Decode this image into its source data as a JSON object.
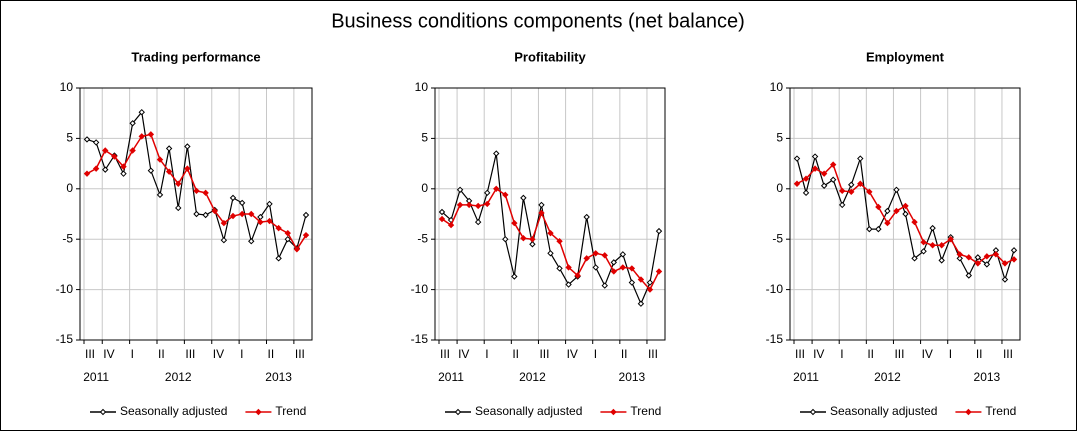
{
  "title": "Business conditions components (net balance)",
  "chart_data": [
    {
      "type": "line",
      "title": "Trading performance",
      "categories": [
        "III",
        null,
        "IV",
        null,
        null,
        "I",
        null,
        null,
        "II",
        null,
        null,
        "III",
        null,
        null,
        "IV",
        null,
        null,
        "I",
        null,
        null,
        "II",
        null,
        null,
        "III",
        null
      ],
      "year_labels": [
        null,
        "2011",
        null,
        null,
        null,
        null,
        null,
        null,
        null,
        null,
        "2012",
        null,
        null,
        null,
        null,
        null,
        null,
        null,
        null,
        null,
        null,
        "2013",
        null,
        null,
        null
      ],
      "series": [
        {
          "name": "Seasonally adjusted",
          "color": "#000000",
          "values": [
            4.9,
            4.6,
            1.9,
            3.3,
            1.5,
            6.5,
            7.6,
            1.8,
            -0.6,
            4.0,
            -1.9,
            4.2,
            -2.5,
            -2.6,
            -2.1,
            -5.1,
            -0.9,
            -1.4,
            -5.2,
            -2.8,
            -1.5,
            -6.9,
            -5.0,
            -5.9,
            -2.6
          ]
        },
        {
          "name": "Trend",
          "color": "#e00000",
          "values": [
            1.5,
            2.0,
            3.8,
            3.2,
            2.2,
            3.8,
            5.2,
            5.4,
            2.9,
            1.7,
            0.5,
            2.0,
            -0.2,
            -0.4,
            -2.2,
            -3.4,
            -2.7,
            -2.5,
            -2.5,
            -3.3,
            -3.2,
            -3.9,
            -4.4,
            -6.0,
            -4.6
          ]
        }
      ],
      "ylim": [
        -15,
        10
      ],
      "yticks": [
        -15,
        -10,
        -5,
        0,
        5,
        10
      ],
      "grid": true,
      "legend": "bottom"
    },
    {
      "type": "line",
      "title": "Profitability",
      "categories": [
        "III",
        null,
        "IV",
        null,
        null,
        "I",
        null,
        null,
        "II",
        null,
        null,
        "III",
        null,
        null,
        "IV",
        null,
        null,
        "I",
        null,
        null,
        "II",
        null,
        null,
        "III",
        null
      ],
      "year_labels": [
        null,
        "2011",
        null,
        null,
        null,
        null,
        null,
        null,
        null,
        null,
        "2012",
        null,
        null,
        null,
        null,
        null,
        null,
        null,
        null,
        null,
        null,
        "2013",
        null,
        null,
        null
      ],
      "series": [
        {
          "name": "Seasonally adjusted",
          "color": "#000000",
          "values": [
            -2.3,
            -3.1,
            -0.1,
            -1.2,
            -3.3,
            -0.4,
            3.5,
            -5.0,
            -8.7,
            -0.9,
            -5.5,
            -1.6,
            -6.4,
            -7.9,
            -9.5,
            -8.7,
            -2.8,
            -7.8,
            -9.6,
            -7.3,
            -6.5,
            -9.3,
            -11.4,
            -9.3,
            -4.2
          ]
        },
        {
          "name": "Trend",
          "color": "#e00000",
          "values": [
            -3.0,
            -3.6,
            -1.6,
            -1.6,
            -1.7,
            -1.5,
            0.0,
            -0.6,
            -3.4,
            -4.9,
            -5.0,
            -2.4,
            -4.4,
            -5.2,
            -7.8,
            -8.6,
            -6.9,
            -6.4,
            -6.6,
            -8.2,
            -7.8,
            -7.9,
            -9.0,
            -10.0,
            -8.2
          ]
        }
      ],
      "ylim": [
        -15,
        10
      ],
      "yticks": [
        -15,
        -10,
        -5,
        0,
        5,
        10
      ],
      "grid": true,
      "legend": "bottom"
    },
    {
      "type": "line",
      "title": "Employment",
      "categories": [
        "III",
        null,
        "IV",
        null,
        null,
        "I",
        null,
        null,
        "II",
        null,
        null,
        "III",
        null,
        null,
        "IV",
        null,
        null,
        "I",
        null,
        null,
        "II",
        null,
        null,
        "III",
        null
      ],
      "year_labels": [
        null,
        "2011",
        null,
        null,
        null,
        null,
        null,
        null,
        null,
        null,
        "2012",
        null,
        null,
        null,
        null,
        null,
        null,
        null,
        null,
        null,
        null,
        "2013",
        null,
        null,
        null
      ],
      "series": [
        {
          "name": "Seasonally adjusted",
          "color": "#000000",
          "values": [
            3.0,
            -0.4,
            3.2,
            0.3,
            0.9,
            -1.6,
            0.4,
            3.0,
            -4.0,
            -4.0,
            -2.2,
            -0.1,
            -2.5,
            -6.9,
            -6.2,
            -3.9,
            -7.1,
            -4.8,
            -6.9,
            -8.6,
            -6.8,
            -7.5,
            -6.1,
            -9.0,
            -6.1
          ]
        },
        {
          "name": "Trend",
          "color": "#e00000",
          "values": [
            0.5,
            1.0,
            2.0,
            1.5,
            2.4,
            -0.2,
            -0.3,
            0.5,
            -0.3,
            -1.8,
            -3.4,
            -2.2,
            -1.7,
            -3.3,
            -5.3,
            -5.6,
            -5.6,
            -5.0,
            -6.5,
            -6.8,
            -7.4,
            -6.7,
            -6.5,
            -7.4,
            -7.0
          ]
        }
      ],
      "ylim": [
        -15,
        10
      ],
      "yticks": [
        -15,
        -10,
        -5,
        0,
        5,
        10
      ],
      "grid": true,
      "legend": "bottom"
    }
  ]
}
